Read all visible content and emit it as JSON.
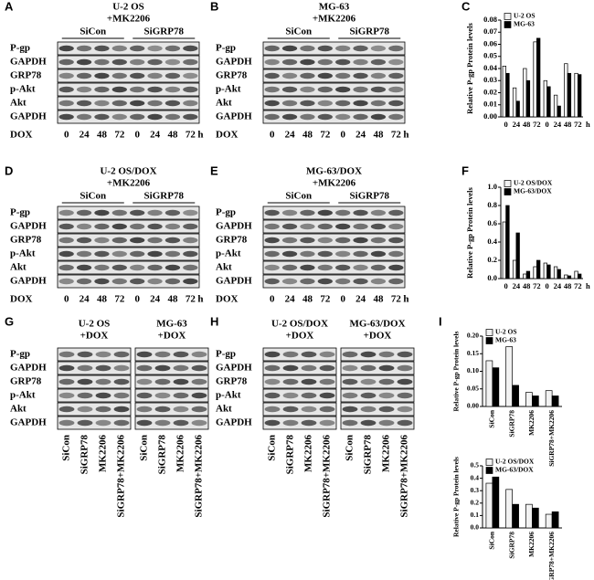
{
  "panels": [
    {
      "letter": "A",
      "title": [
        "U-2 OS",
        "+MK2206"
      ],
      "groups": [
        "SiCon",
        "SiGRP78"
      ],
      "rows": [
        "P-gp",
        "GAPDH",
        "GRP78",
        "p-Akt",
        "Akt",
        "GAPDH"
      ],
      "lane_title": "DOX",
      "lanes": [
        "0",
        "24",
        "48",
        "72",
        "0",
        "24",
        "48",
        "72"
      ],
      "unit": "h"
    },
    {
      "letter": "B",
      "title": [
        "MG-63",
        "+MK2206"
      ],
      "groups": [
        "SiCon",
        "SiGRP78"
      ],
      "rows": [
        "P-gp",
        "GAPDH",
        "GRP78",
        "p-Akt",
        "Akt",
        "GAPDH"
      ],
      "lane_title": "DOX",
      "lanes": [
        "0",
        "24",
        "48",
        "72",
        "0",
        "24",
        "48",
        "72"
      ],
      "unit": "h"
    },
    {
      "letter": "D",
      "title": [
        "U-2 OS/DOX",
        "+MK2206"
      ],
      "groups": [
        "SiCon",
        "SiGRP78"
      ],
      "rows": [
        "P-gp",
        "GAPDH",
        "GRP78",
        "p-Akt",
        "Akt",
        "GAPDH"
      ],
      "lane_title": "DOX",
      "lanes": [
        "0",
        "24",
        "48",
        "72",
        "0",
        "24",
        "48",
        "72"
      ],
      "unit": "h"
    },
    {
      "letter": "E",
      "title": [
        "MG-63/DOX",
        "+MK2206"
      ],
      "groups": [
        "SiCon",
        "SiGRP78"
      ],
      "rows": [
        "P-gp",
        "GAPDH",
        "GRP78",
        "p-Akt",
        "Akt",
        "GAPDH"
      ],
      "lane_title": "DOX",
      "lanes": [
        "0",
        "24",
        "48",
        "72",
        "0",
        "24",
        "48",
        "72"
      ],
      "unit": "h"
    },
    {
      "letter": "G",
      "rows": [
        "P-gp",
        "GAPDH",
        "GRP78",
        "p-Akt",
        "Akt",
        "GAPDH"
      ],
      "blocks": [
        {
          "title": [
            "U-2 OS",
            "+DOX"
          ],
          "lanes": [
            "SiCon",
            "SiGRP78",
            "MK2206",
            "SiGRP78+MK2206"
          ]
        },
        {
          "title": [
            "MG-63",
            "+DOX"
          ],
          "lanes": [
            "SiCon",
            "SiGRP78",
            "MK2206",
            "SiGRP78+MK2206"
          ]
        }
      ]
    },
    {
      "letter": "H",
      "rows": [
        "P-gp",
        "GAPDH",
        "GRP78",
        "p-Akt",
        "Akt",
        "GAPDH"
      ],
      "blocks": [
        {
          "title": [
            "U-2 OS/DOX",
            "+DOX"
          ],
          "lanes": [
            "SiCon",
            "SiGRP78",
            "MK2206",
            "SiGRP78+MK2206"
          ]
        },
        {
          "title": [
            "MG-63/DOX",
            "+DOX"
          ],
          "lanes": [
            "SiCon",
            "SiGRP78",
            "MK2206",
            "SiGRP78+MK2206"
          ]
        }
      ]
    }
  ],
  "chart_data": [
    {
      "type": "bar",
      "letter": "C",
      "y_label": "Relative P-gp Protein levels",
      "categories": [
        "0",
        "24",
        "48",
        "72",
        "0",
        "24",
        "48",
        "72"
      ],
      "x_unit": "h",
      "series": [
        {
          "name": "U-2 OS",
          "color": "#f2f2f2",
          "values": [
            0.042,
            0.024,
            0.04,
            0.062,
            0.03,
            0.018,
            0.044,
            0.036
          ]
        },
        {
          "name": "MG-63",
          "color": "#000000",
          "values": [
            0.036,
            0.013,
            0.03,
            0.065,
            0.025,
            0.009,
            0.036,
            0.035
          ]
        }
      ],
      "ylim": [
        0,
        0.08
      ],
      "yticks": [
        {
          "value": 0,
          "label": "0.00"
        },
        {
          "value": 0.01,
          "label": "0.01"
        },
        {
          "value": 0.02,
          "label": "0.02"
        },
        {
          "value": 0.03,
          "label": "0.03"
        },
        {
          "value": 0.04,
          "label": "0.04"
        },
        {
          "value": 0.05,
          "label": "0.05"
        },
        {
          "value": 0.06,
          "label": "0.06"
        },
        {
          "value": 0.07,
          "label": "0.07"
        },
        {
          "value": 0.08,
          "label": "0.08"
        }
      ],
      "legend": "upper left"
    },
    {
      "type": "bar",
      "letter": "F",
      "y_label": "Relative P-gp Protein levels",
      "categories": [
        "0",
        "24",
        "48",
        "72",
        "0",
        "24",
        "48",
        "72"
      ],
      "x_unit": "h",
      "series": [
        {
          "name": "U-2 OS/DOX",
          "color": "#f2f2f2",
          "values": [
            0.62,
            0.2,
            0.05,
            0.13,
            0.17,
            0.13,
            0.04,
            0.08
          ]
        },
        {
          "name": "MG-63/DOX",
          "color": "#000000",
          "values": [
            0.8,
            0.5,
            0.08,
            0.2,
            0.15,
            0.1,
            0.03,
            0.05
          ]
        }
      ],
      "ylim": [
        0,
        1.0
      ],
      "yticks": [
        {
          "value": 0,
          "label": "0.0"
        },
        0.2,
        0.4,
        0.6,
        0.8,
        {
          "value": 1.0,
          "label": "1.0"
        }
      ],
      "legend": "upper left"
    },
    {
      "type": "bar",
      "letter": "I",
      "y_label": "Relative P-gp Protein levels",
      "categories": [
        "SiCon",
        "SiGRP78",
        "MK2206",
        "SiGRP78+MK2206"
      ],
      "series": [
        {
          "name": "U-2 OS",
          "color": "#f2f2f2",
          "values": [
            0.13,
            0.17,
            0.04,
            0.045
          ]
        },
        {
          "name": "MG-63",
          "color": "#000000",
          "values": [
            0.11,
            0.06,
            0.03,
            0.03
          ]
        }
      ],
      "ylim": [
        0,
        0.2
      ],
      "yticks": [
        {
          "value": 0,
          "label": "0.00"
        },
        0.05,
        {
          "value": 0.1,
          "label": "0.10"
        },
        0.15,
        {
          "value": 0.2,
          "label": "0.20"
        }
      ],
      "legend": "upper left"
    },
    {
      "type": "bar",
      "y_label": "Relative P-gp Protein levels",
      "categories": [
        "SiCon",
        "SiGRP78",
        "MK2206",
        "SiGRP78+MK2206"
      ],
      "series": [
        {
          "name": "U-2 OS/DOX",
          "color": "#f2f2f2",
          "values": [
            0.36,
            0.31,
            0.19,
            0.11
          ]
        },
        {
          "name": "MG-63/DOX",
          "color": "#000000",
          "values": [
            0.41,
            0.19,
            0.16,
            0.13
          ]
        }
      ],
      "ylim": [
        0,
        0.5
      ],
      "yticks": [
        {
          "value": 0,
          "label": "0.0"
        },
        0.1,
        0.2,
        0.3,
        0.4,
        0.5
      ],
      "legend": "upper left"
    }
  ]
}
